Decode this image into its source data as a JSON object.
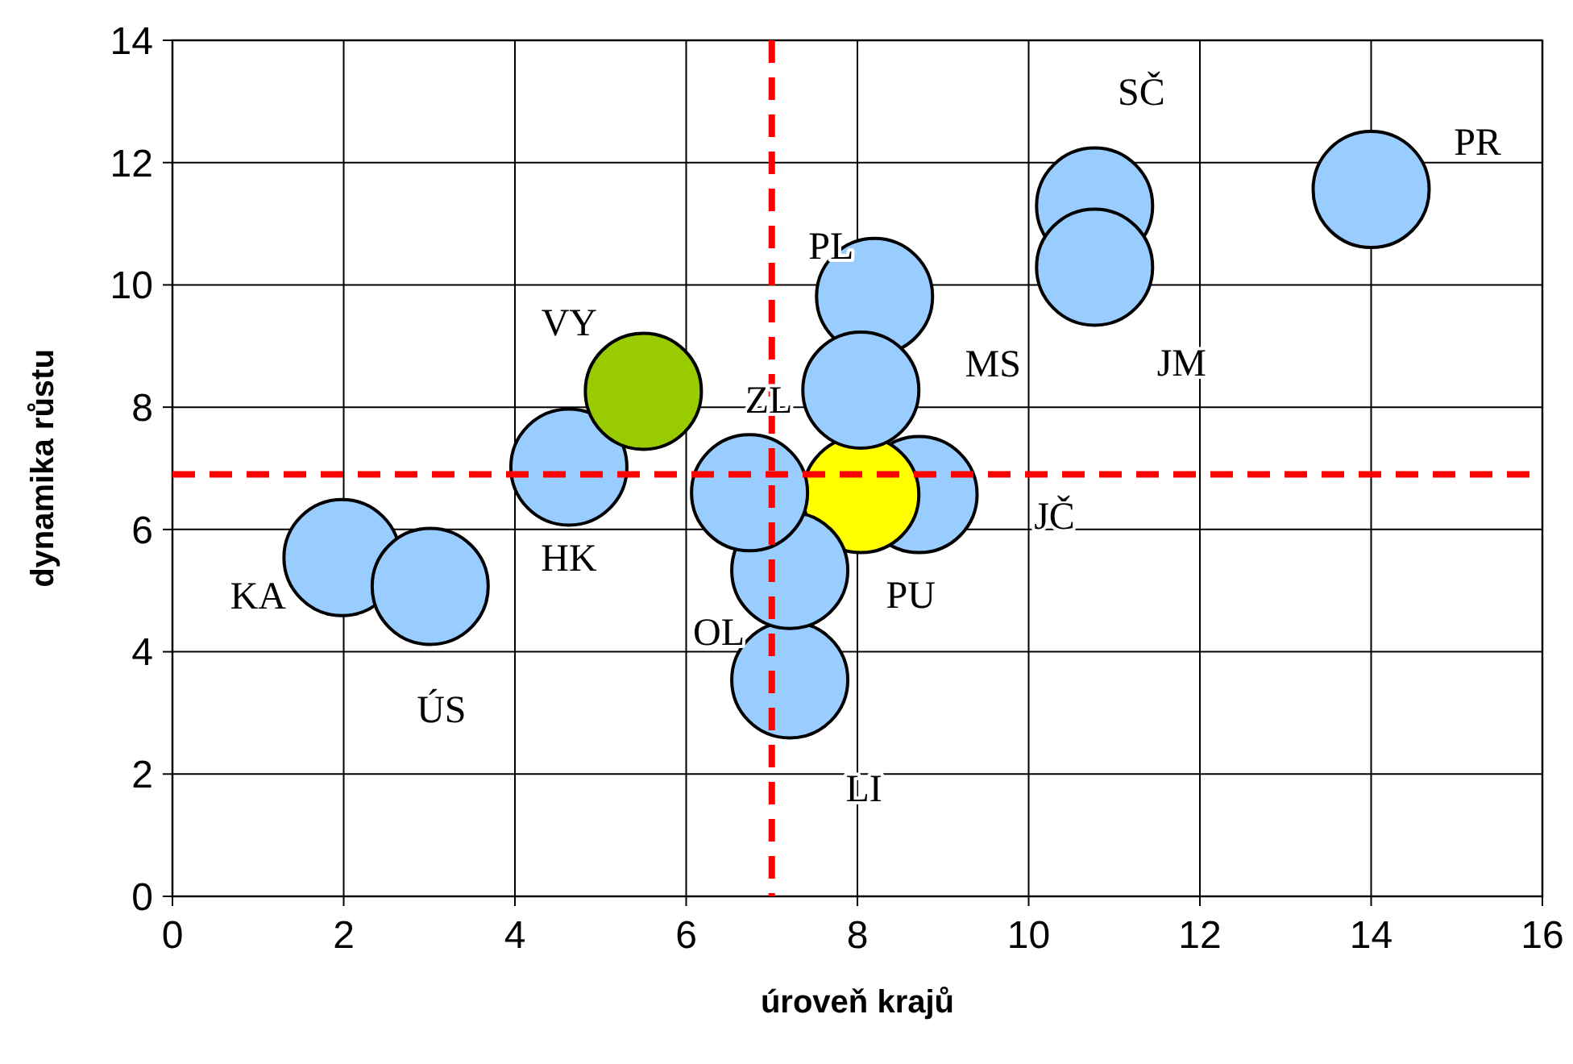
{
  "chart_data": {
    "type": "bubble",
    "xlabel": "úroveň krajů",
    "ylabel": "dynamika růstu",
    "x": [
      1.98,
      3.01,
      4.63,
      5.5,
      14.0,
      10.77,
      10.77,
      8.72,
      8.04,
      7.21,
      7.21,
      6.74,
      8.2,
      8.04
    ],
    "values": [
      5.54,
      5.07,
      7.02,
      8.26,
      11.56,
      11.29,
      10.29,
      6.57,
      6.57,
      3.54,
      5.33,
      6.6,
      9.81,
      8.28
    ],
    "sizes": [
      1,
      1,
      1,
      1,
      1,
      1,
      1,
      1,
      1,
      1,
      1,
      1,
      1,
      1
    ],
    "colors": [
      "#99ccff",
      "#99ccff",
      "#99ccff",
      "#99cc00",
      "#99ccff",
      "#99ccff",
      "#99ccff",
      "#99ccff",
      "#ffff00",
      "#99ccff",
      "#99ccff",
      "#99ccff",
      "#99ccff",
      "#99ccff"
    ],
    "xlim": [
      0,
      16
    ],
    "xticks": [
      0,
      2,
      4,
      6,
      8,
      10,
      12,
      14,
      16
    ],
    "ylim": [
      0,
      14
    ],
    "yticks": [
      0,
      2,
      4,
      6,
      8,
      10,
      12,
      14
    ],
    "grid": true,
    "ref_lines": [
      {
        "axis": "x",
        "value": 7,
        "color": "#ff0000",
        "line_style": "dashed"
      },
      {
        "axis": "y",
        "value": 6.9,
        "color": "#ff0000",
        "line_style": "dashed"
      }
    ],
    "annotations": [
      {
        "text": "SČ",
        "x": 10.77,
        "y": 11.29
      },
      {
        "text": "PR",
        "x": 14.0,
        "y": 11.56
      },
      {
        "text": "PL",
        "x": 8.2,
        "y": 9.81
      },
      {
        "text": "VY",
        "x": 5.5,
        "y": 8.26
      },
      {
        "text": "MS",
        "x": 8.04,
        "y": 8.28
      },
      {
        "text": "JM",
        "x": 10.77,
        "y": 10.29
      },
      {
        "text": "ZL",
        "x": 6.74,
        "y": 6.6
      },
      {
        "text": "HK",
        "x": 4.63,
        "y": 7.02
      },
      {
        "text": "JČ",
        "x": 8.72,
        "y": 6.57
      },
      {
        "text": "KA",
        "x": 1.98,
        "y": 5.54
      },
      {
        "text": "PU",
        "x": 8.04,
        "y": 6.57
      },
      {
        "text": "OL",
        "x": 7.21,
        "y": 5.33
      },
      {
        "text": "ÚS",
        "x": 3.01,
        "y": 5.07
      },
      {
        "text": "LI",
        "x": 7.21,
        "y": 3.54
      }
    ]
  }
}
